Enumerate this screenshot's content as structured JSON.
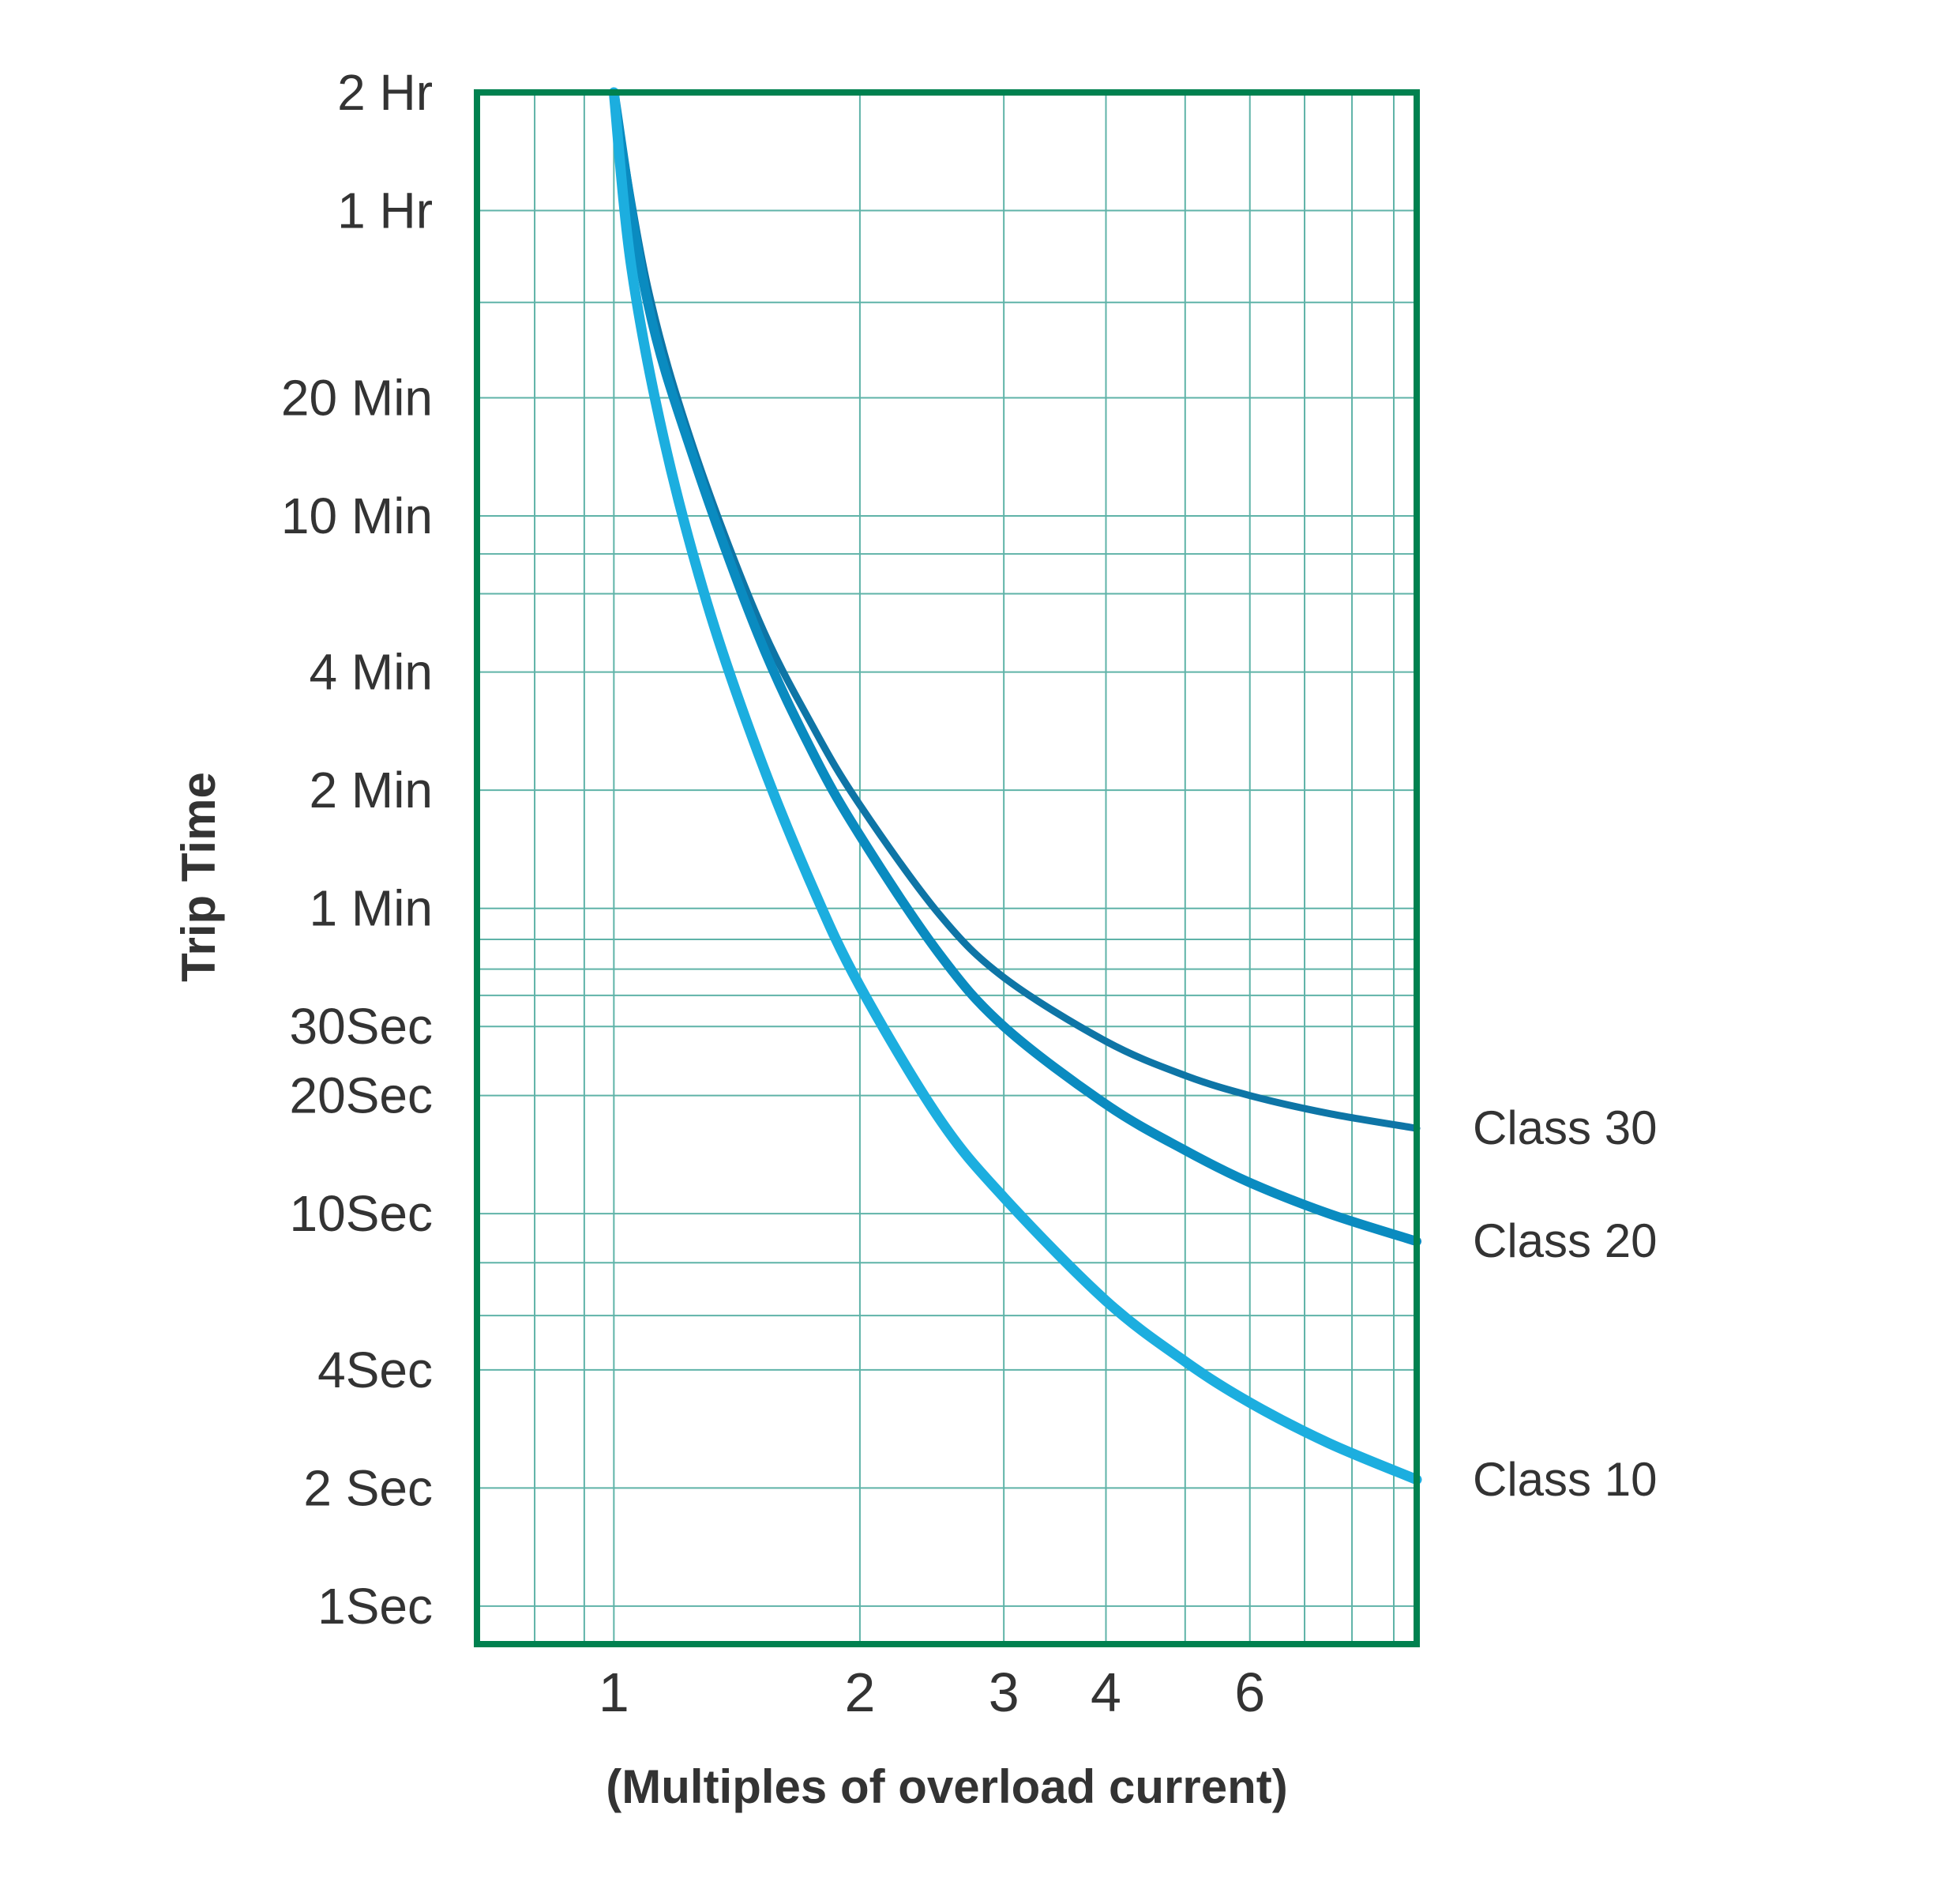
{
  "chart_data": {
    "type": "line",
    "title": "",
    "xlabel": "(Multiples of overload current)",
    "ylabel": "Trip Time",
    "x_scale": "log",
    "y_scale": "log",
    "xlim": [
      0.68,
      9.6
    ],
    "ylim_seconds": [
      0.8,
      7200
    ],
    "y_tick_labels": [
      {
        "label": "2 Hr",
        "seconds": 7200
      },
      {
        "label": "1 Hr",
        "seconds": 3600
      },
      {
        "label": "20 Min",
        "seconds": 1200
      },
      {
        "label": "10 Min",
        "seconds": 600
      },
      {
        "label": "4 Min",
        "seconds": 240
      },
      {
        "label": "2 Min",
        "seconds": 120
      },
      {
        "label": "1 Min",
        "seconds": 60
      },
      {
        "label": "30Sec",
        "seconds": 30
      },
      {
        "label": "20Sec",
        "seconds": 20
      },
      {
        "label": "10Sec",
        "seconds": 10
      },
      {
        "label": "4Sec",
        "seconds": 4
      },
      {
        "label": "2 Sec",
        "seconds": 2
      },
      {
        "label": "1Sec",
        "seconds": 1
      }
    ],
    "x_tick_labels": [
      {
        "label": "1",
        "value": 1
      },
      {
        "label": "2",
        "value": 2
      },
      {
        "label": "3",
        "value": 3
      },
      {
        "label": "4",
        "value": 4
      },
      {
        "label": "6",
        "value": 6
      }
    ],
    "x_grid_values": [
      0.8,
      0.92,
      1,
      2,
      3,
      4,
      5,
      6,
      7,
      8,
      9
    ],
    "y_grid_seconds": [
      3600,
      2100,
      1200,
      600,
      480,
      380,
      240,
      120,
      60,
      50,
      42,
      36,
      30,
      20,
      10,
      7.5,
      5.5,
      4,
      2,
      1
    ],
    "grid": true,
    "grid_color": "#5fb3a8",
    "frame_color": "#00814f",
    "series": [
      {
        "name": "Class 30",
        "color": "#0e75a6",
        "x": [
          1.0,
          1.1,
          1.25,
          1.5,
          1.75,
          2.0,
          2.5,
          3.0,
          4.0,
          5.0,
          6.0,
          7.5,
          9.6
        ],
        "y": [
          7200,
          2300,
          900,
          330,
          175,
          110,
          58,
          40,
          27.5,
          22.5,
          20,
          18,
          16.5
        ]
      },
      {
        "name": "Class 20",
        "color": "#0a8bc0",
        "x": [
          1.0,
          1.1,
          1.25,
          1.5,
          1.75,
          2.0,
          2.5,
          3.0,
          4.0,
          5.0,
          6.0,
          7.5,
          9.6
        ],
        "y": [
          7200,
          2100,
          850,
          300,
          150,
          92,
          46,
          30,
          19,
          14.5,
          12,
          10,
          8.5
        ]
      },
      {
        "name": "Class 10",
        "color": "#1caedf",
        "x": [
          1.0,
          1.05,
          1.15,
          1.3,
          1.5,
          1.75,
          2.0,
          2.5,
          3.0,
          4.0,
          5.0,
          6.0,
          7.5,
          9.6
        ],
        "y": [
          7200,
          2600,
          950,
          360,
          150,
          68,
          38,
          17.5,
          11,
          6,
          4.2,
          3.3,
          2.6,
          2.1
        ]
      }
    ],
    "legend": "right-side labels at line ends"
  }
}
